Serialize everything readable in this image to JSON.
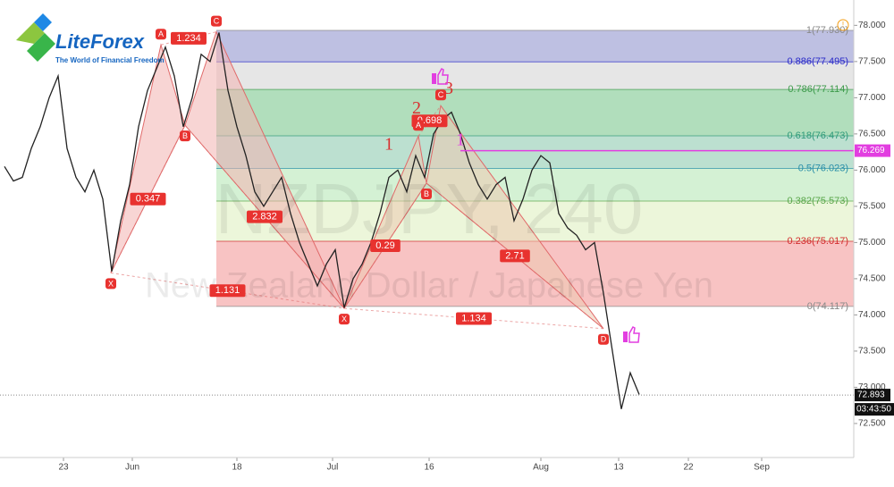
{
  "logo": {
    "name": "LiteForex",
    "tagline": "The World of Financial Freedom"
  },
  "chart_data": {
    "type": "line",
    "title": "NZDJPY, 240",
    "subtitle": "New Zealand Dollar / Japanese Yen",
    "x": [
      0,
      1,
      2,
      3,
      4,
      5,
      6,
      7,
      8,
      9,
      10,
      11,
      12,
      13,
      14,
      15,
      16,
      17,
      18,
      19,
      20,
      21,
      22,
      23,
      24,
      25,
      26,
      27,
      28,
      29,
      30,
      31,
      32,
      33,
      34,
      35,
      36,
      37,
      38,
      39,
      40,
      41,
      42,
      43,
      44,
      45,
      46,
      47,
      48,
      49,
      50,
      51,
      52,
      53,
      54,
      55,
      56,
      57,
      58,
      59,
      60,
      61,
      62,
      63,
      64,
      65,
      66,
      67,
      68,
      69,
      70,
      71
    ],
    "series": [
      {
        "color": "#222222",
        "values": [
          76.05,
          75.85,
          75.9,
          76.3,
          76.6,
          77.0,
          77.3,
          76.3,
          75.9,
          75.7,
          76.0,
          75.6,
          74.6,
          75.3,
          75.8,
          76.6,
          77.1,
          77.4,
          77.7,
          77.3,
          76.6,
          77.0,
          77.6,
          77.5,
          77.9,
          77.1,
          76.6,
          76.2,
          75.7,
          75.5,
          75.7,
          75.9,
          75.4,
          75.0,
          74.7,
          74.4,
          74.7,
          74.9,
          74.1,
          74.5,
          74.7,
          75.0,
          75.4,
          75.9,
          76.0,
          75.7,
          76.2,
          75.9,
          76.5,
          76.7,
          76.8,
          76.5,
          76.1,
          75.8,
          75.6,
          75.8,
          75.9,
          75.3,
          75.6,
          76.0,
          76.2,
          76.1,
          75.4,
          75.2,
          75.1,
          74.9,
          75.0,
          74.3,
          73.5,
          72.7,
          73.2,
          72.9
        ]
      }
    ],
    "xlim": [
      -0.5,
      95
    ],
    "xticks": [
      {
        "value": 6.6,
        "label": "23"
      },
      {
        "value": 14.3,
        "label": "Jun"
      },
      {
        "value": 26,
        "label": "18"
      },
      {
        "value": 36.7,
        "label": "Jul"
      },
      {
        "value": 47.5,
        "label": "16"
      },
      {
        "value": 60,
        "label": "Aug"
      },
      {
        "value": 68.7,
        "label": "13"
      },
      {
        "value": 76.5,
        "label": "22"
      },
      {
        "value": 84.7,
        "label": "Sep"
      }
    ],
    "ylim": [
      72.03,
      78.35
    ],
    "yticks": [
      {
        "value": 72.5,
        "label": "72.500"
      },
      {
        "value": 73,
        "label": "73.000"
      },
      {
        "value": 73.5,
        "label": "73.500"
      },
      {
        "value": 74,
        "label": "74.000"
      },
      {
        "value": 74.5,
        "label": "74.500"
      },
      {
        "value": 75,
        "label": "75.000"
      },
      {
        "value": 75.5,
        "label": "75.500"
      },
      {
        "value": 76,
        "label": "76.000"
      },
      {
        "value": 76.5,
        "label": "76.500"
      },
      {
        "value": 77,
        "label": "77.000"
      },
      {
        "value": 77.5,
        "label": "77.500"
      },
      {
        "value": 78,
        "label": "78.000"
      }
    ],
    "price_lines": [
      {
        "value": 76.269,
        "color": "#e23ee0"
      },
      {
        "value": 72.893,
        "color": "#111111"
      }
    ],
    "countdown": "03:43:50",
    "fib_levels": [
      {
        "label": "1(77.930)",
        "value": 77.93,
        "color": "#888888",
        "fill": "#b3b5dd"
      },
      {
        "label": "0.886(77.495)",
        "value": 77.495,
        "color": "#2b2bc8",
        "fill": "#e2e2e2"
      },
      {
        "label": "0.786(77.114)",
        "value": 77.114,
        "color": "#3c9a4a",
        "fill": "#a3d8b0"
      },
      {
        "label": "0.618(76.473)",
        "value": 76.473,
        "color": "#2f9a7a",
        "fill": "#b0dbc8"
      },
      {
        "label": "0.5(76.023)",
        "value": 76.023,
        "color": "#2a8fa8",
        "fill": "#cdeecd"
      },
      {
        "label": "0.382(75.573)",
        "value": 75.573,
        "color": "#5aa64a",
        "fill": "#e9f4d3"
      },
      {
        "label": "0.236(75.017)",
        "value": 75.017,
        "color": "#d22c2c",
        "fill": "#f7b8b8"
      },
      {
        "label": "0(74.117)",
        "value": 74.117,
        "color": "#888888",
        "fill": "none"
      }
    ],
    "patterns": [
      {
        "fill": "#f3b3b0",
        "points": [
          {
            "label": "X",
            "x": 11.9,
            "y": 74.58
          },
          {
            "label": "A",
            "x": 17.5,
            "y": 77.73
          },
          {
            "label": "B",
            "x": 20.2,
            "y": 76.62
          },
          {
            "label": "C",
            "x": 23.7,
            "y": 77.91
          },
          {
            "label": null,
            "x": 38,
            "y": 74.09
          }
        ],
        "ratios": [
          0.347,
          1.234,
          2.832,
          1.131
        ]
      },
      {
        "fill": "#ecc9b0",
        "points": [
          {
            "label": "X",
            "x": 38,
            "y": 74.09
          },
          {
            "label": "A",
            "x": 46.3,
            "y": 76.47
          },
          {
            "label": "B",
            "x": 47.2,
            "y": 75.82
          },
          {
            "label": "C",
            "x": 48.8,
            "y": 76.89
          },
          {
            "label": "D",
            "x": 67,
            "y": 73.81
          }
        ],
        "ratios": [
          0.29,
          0.698,
          2.71,
          1.134
        ]
      }
    ],
    "wave_labels": [
      {
        "text": "1",
        "x": 43,
        "y": 76.34,
        "color": "#d93030"
      },
      {
        "text": "2",
        "x": 46.1,
        "y": 76.84,
        "color": "#d93030"
      },
      {
        "text": "3",
        "x": 49.7,
        "y": 77.11,
        "color": "#d93030"
      },
      {
        "text": "1",
        "x": 51,
        "y": 76.4,
        "color": "#e23ee0"
      }
    ]
  }
}
